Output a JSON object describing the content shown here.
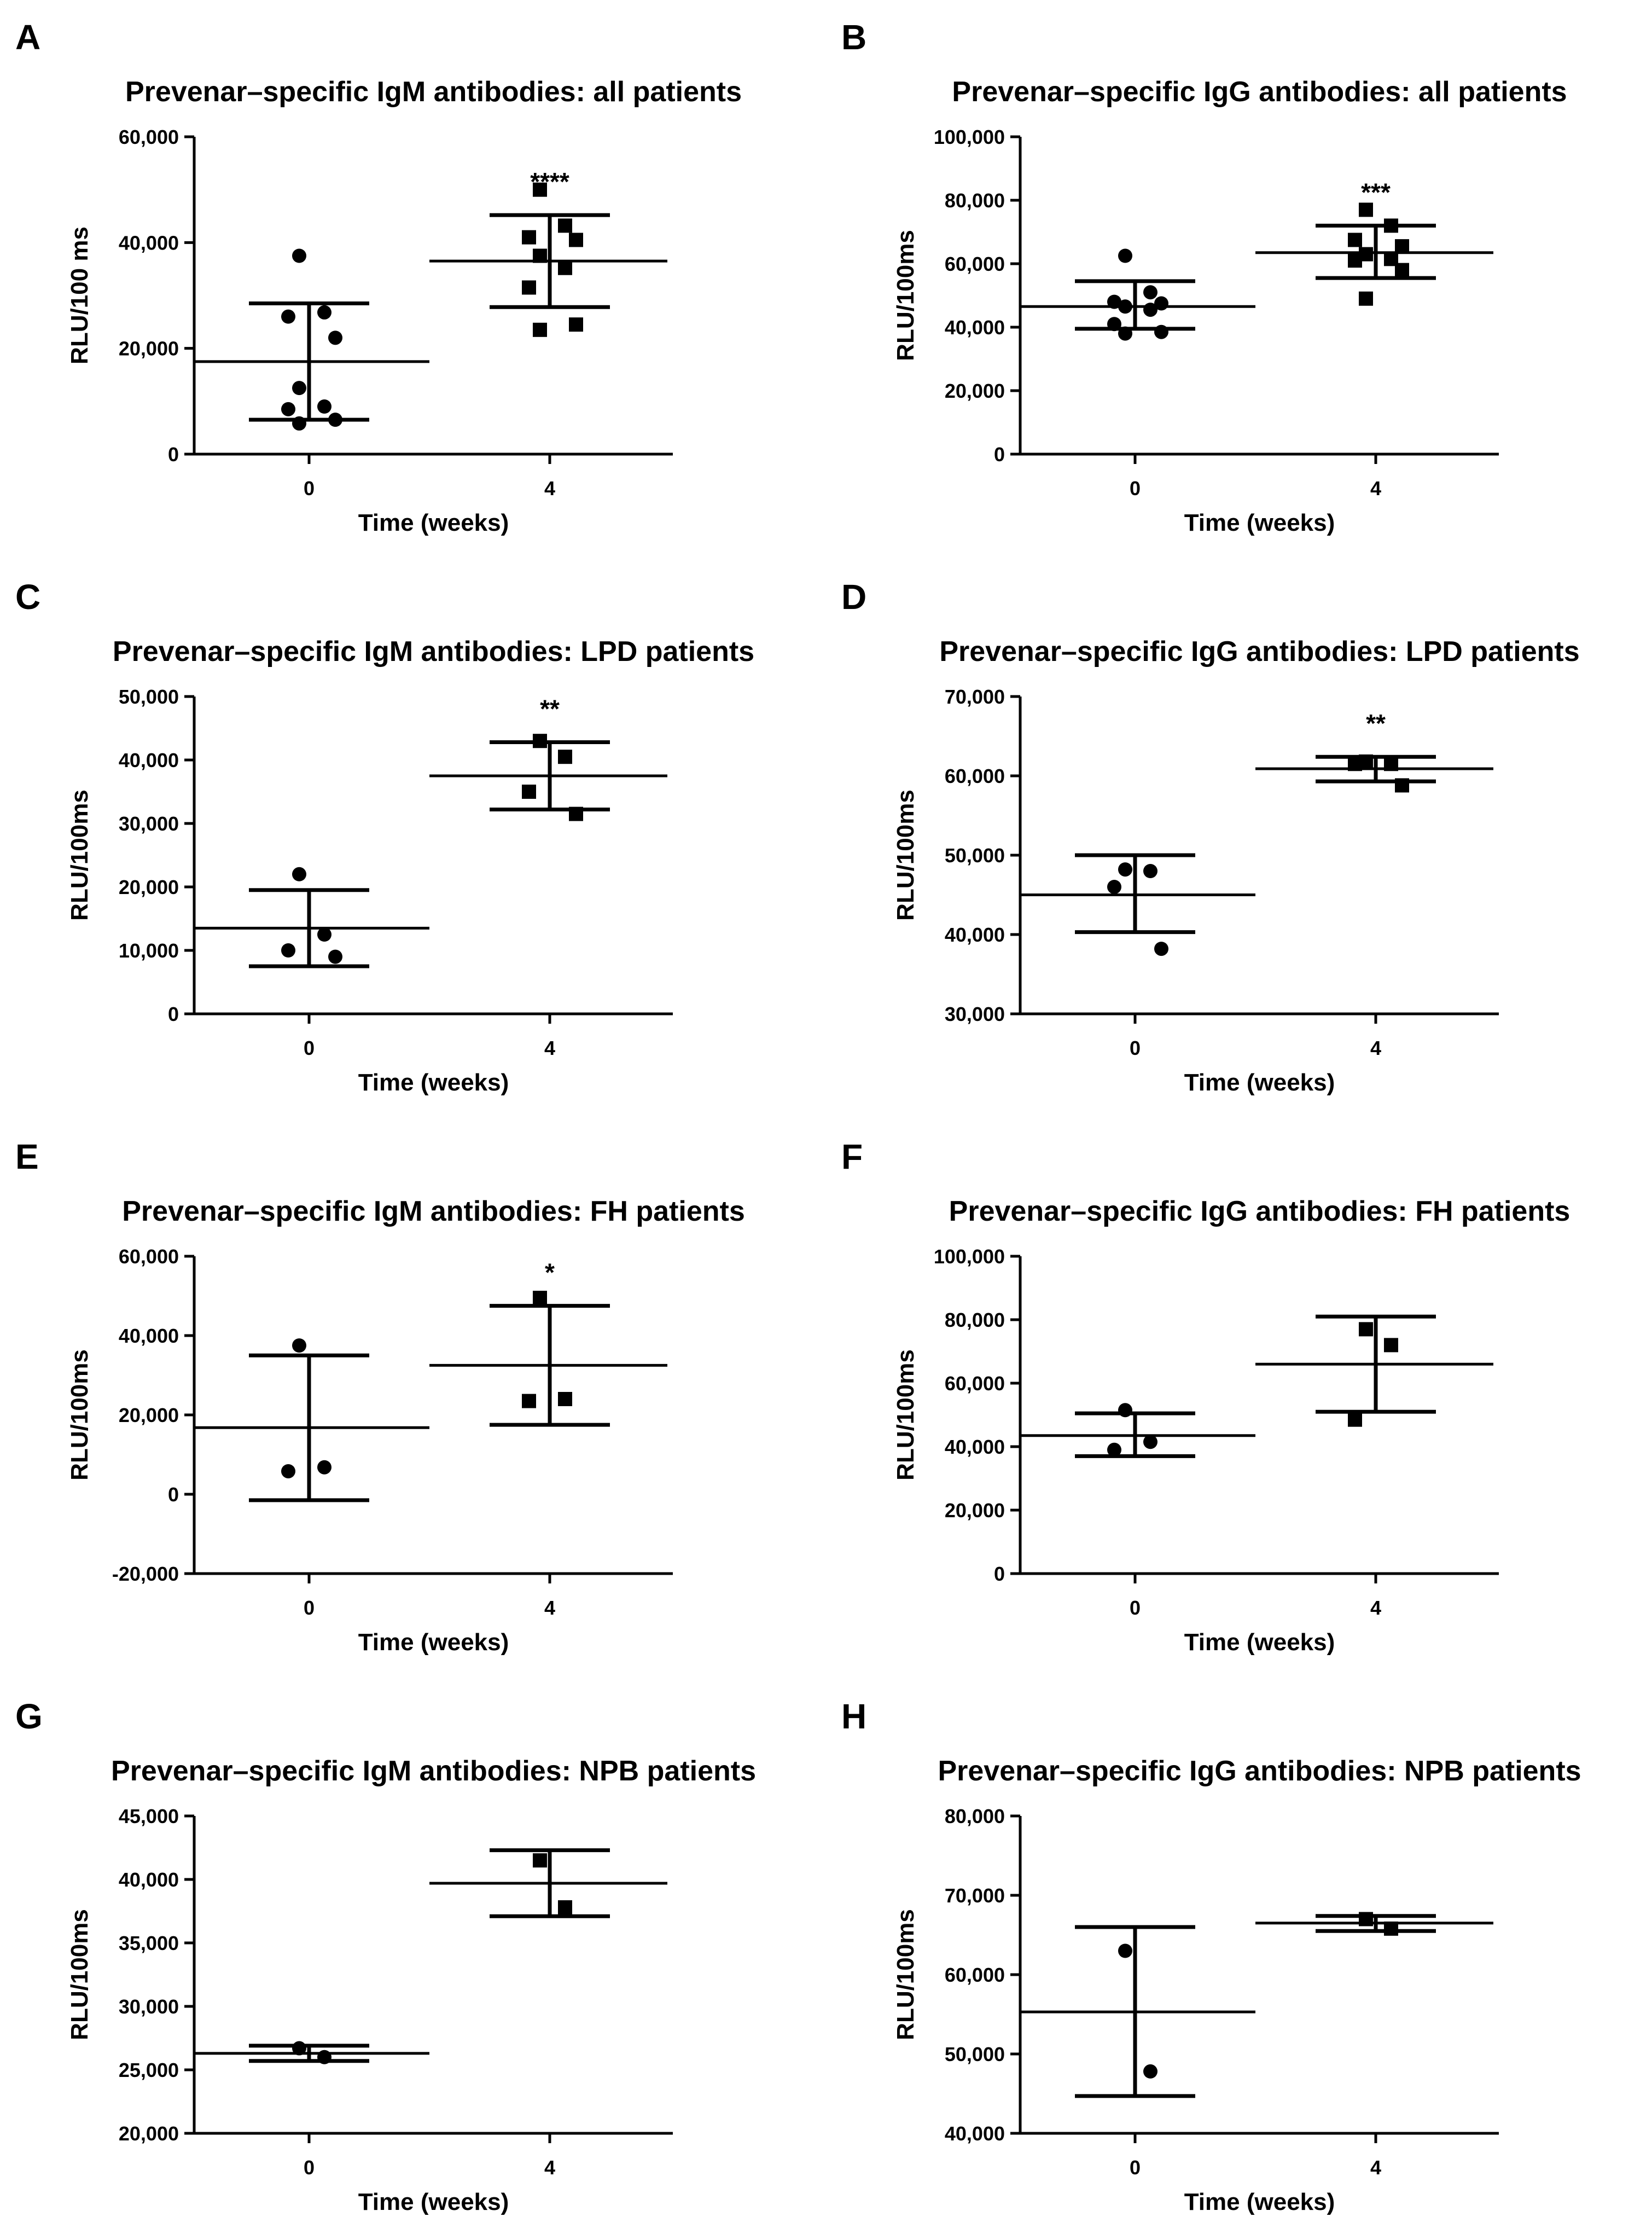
{
  "colors": {
    "ink": "#000000",
    "background": "#ffffff"
  },
  "chart_data": [
    {
      "panel": "A",
      "type": "scatter",
      "title": "Prevenar–specific IgM antibodies: all patients",
      "xlabel": "Time (weeks)",
      "ylabel": "RLU/100 ms",
      "categories": [
        "0",
        "4"
      ],
      "ylim": [
        0,
        60000
      ],
      "yticks": [
        "0",
        "20,000",
        "40,000",
        "60,000"
      ],
      "groups": [
        {
          "name": "0",
          "marker": "circle",
          "mean": 17500,
          "sd_upper": 28500,
          "sd_lower": 6500,
          "points": [
            37500,
            26800,
            26000,
            22000,
            12500,
            9000,
            8500,
            6500,
            5800
          ]
        },
        {
          "name": "4",
          "marker": "square",
          "mean": 36500,
          "sd_upper": 45200,
          "sd_lower": 27800,
          "points": [
            50000,
            43200,
            41000,
            40500,
            37500,
            35200,
            31500,
            24500,
            23500
          ]
        }
      ],
      "significance": "****"
    },
    {
      "panel": "B",
      "type": "scatter",
      "title": "Prevenar–specific IgG antibodies: all patients",
      "xlabel": "Time (weeks)",
      "ylabel": "RLU/100ms",
      "categories": [
        "0",
        "4"
      ],
      "ylim": [
        0,
        100000
      ],
      "yticks": [
        "0",
        "20,000",
        "40,000",
        "60,000",
        "80,000",
        "100,000"
      ],
      "groups": [
        {
          "name": "0",
          "marker": "circle",
          "mean": 46500,
          "sd_upper": 54500,
          "sd_lower": 39500,
          "points": [
            62500,
            51000,
            48000,
            47500,
            46500,
            45500,
            41000,
            38500,
            38000
          ]
        },
        {
          "name": "4",
          "marker": "square",
          "mean": 63500,
          "sd_upper": 72000,
          "sd_lower": 55500,
          "points": [
            77000,
            72000,
            67500,
            65500,
            63000,
            61500,
            61000,
            58000,
            49000
          ]
        }
      ],
      "significance": "***"
    },
    {
      "panel": "C",
      "type": "scatter",
      "title": "Prevenar–specific IgM antibodies: LPD patients",
      "xlabel": "Time (weeks)",
      "ylabel": "RLU/100ms",
      "categories": [
        "0",
        "4"
      ],
      "ylim": [
        0,
        50000
      ],
      "yticks": [
        "0",
        "10,000",
        "20,000",
        "30,000",
        "40,000",
        "50,000"
      ],
      "groups": [
        {
          "name": "0",
          "marker": "circle",
          "mean": 13500,
          "sd_upper": 19500,
          "sd_lower": 7500,
          "points": [
            22000,
            12500,
            10000,
            9000
          ]
        },
        {
          "name": "4",
          "marker": "square",
          "mean": 37500,
          "sd_upper": 42800,
          "sd_lower": 32200,
          "points": [
            43000,
            40500,
            35000,
            31500
          ]
        }
      ],
      "significance": "**"
    },
    {
      "panel": "D",
      "type": "scatter",
      "title": "Prevenar–specific IgG antibodies: LPD patients",
      "xlabel": "Time (weeks)",
      "ylabel": "RLU/100ms",
      "categories": [
        "0",
        "4"
      ],
      "ylim": [
        30000,
        70000
      ],
      "yticks": [
        "30,000",
        "40,000",
        "50,000",
        "60,000",
        "70,000"
      ],
      "groups": [
        {
          "name": "0",
          "marker": "circle",
          "mean": 45000,
          "sd_upper": 50000,
          "sd_lower": 40300,
          "points": [
            48200,
            48000,
            46000,
            38200
          ]
        },
        {
          "name": "4",
          "marker": "square",
          "mean": 60900,
          "sd_upper": 62400,
          "sd_lower": 59300,
          "points": [
            61800,
            61500,
            61500,
            58800
          ]
        }
      ],
      "significance": "**"
    },
    {
      "panel": "E",
      "type": "scatter",
      "title": "Prevenar–specific IgM antibodies: FH patients",
      "xlabel": "Time (weeks)",
      "ylabel": "RLU/100ms",
      "categories": [
        "0",
        "4"
      ],
      "ylim": [
        -20000,
        60000
      ],
      "yticks": [
        "-20,000",
        "0",
        "20,000",
        "40,000",
        "60,000"
      ],
      "groups": [
        {
          "name": "0",
          "marker": "circle",
          "mean": 16800,
          "sd_upper": 35000,
          "sd_lower": -1500,
          "points": [
            37500,
            6800,
            5800
          ]
        },
        {
          "name": "4",
          "marker": "square",
          "mean": 32500,
          "sd_upper": 47500,
          "sd_lower": 17500,
          "points": [
            49500,
            24000,
            23500
          ]
        }
      ],
      "significance": "*"
    },
    {
      "panel": "F",
      "type": "scatter",
      "title": "Prevenar–specific IgG antibodies: FH patients",
      "xlabel": "Time (weeks)",
      "ylabel": "RLU/100ms",
      "categories": [
        "0",
        "4"
      ],
      "ylim": [
        0,
        100000
      ],
      "yticks": [
        "0",
        "20,000",
        "40,000",
        "60,000",
        "80,000",
        "100,000"
      ],
      "groups": [
        {
          "name": "0",
          "marker": "circle",
          "mean": 43500,
          "sd_upper": 50500,
          "sd_lower": 37000,
          "points": [
            51500,
            41500,
            39000
          ]
        },
        {
          "name": "4",
          "marker": "square",
          "mean": 66000,
          "sd_upper": 81000,
          "sd_lower": 51000,
          "points": [
            77000,
            72000,
            48500
          ]
        }
      ],
      "significance": ""
    },
    {
      "panel": "G",
      "type": "scatter",
      "title": "Prevenar–specific IgM antibodies: NPB patients",
      "xlabel": "Time (weeks)",
      "ylabel": "RLU/100ms",
      "categories": [
        "0",
        "4"
      ],
      "ylim": [
        20000,
        45000
      ],
      "yticks": [
        "20,000",
        "25,000",
        "30,000",
        "35,000",
        "40,000",
        "45,000"
      ],
      "groups": [
        {
          "name": "0",
          "marker": "circle",
          "mean": 26300,
          "sd_upper": 26900,
          "sd_lower": 25700,
          "points": [
            26700,
            26000
          ]
        },
        {
          "name": "4",
          "marker": "square",
          "mean": 39700,
          "sd_upper": 42300,
          "sd_lower": 37100,
          "points": [
            41500,
            37800
          ]
        }
      ],
      "significance": ""
    },
    {
      "panel": "H",
      "type": "scatter",
      "title": "Prevenar–specific IgG antibodies: NPB patients",
      "xlabel": "Time (weeks)",
      "ylabel": "RLU/100ms",
      "categories": [
        "0",
        "4"
      ],
      "ylim": [
        40000,
        80000
      ],
      "yticks": [
        "40,000",
        "50,000",
        "60,000",
        "70,000",
        "80,000"
      ],
      "groups": [
        {
          "name": "0",
          "marker": "circle",
          "mean": 55300,
          "sd_upper": 66000,
          "sd_lower": 44700,
          "points": [
            63000,
            47800
          ]
        },
        {
          "name": "4",
          "marker": "square",
          "mean": 66500,
          "sd_upper": 67400,
          "sd_lower": 65500,
          "points": [
            67000,
            65800
          ]
        }
      ],
      "significance": ""
    }
  ]
}
